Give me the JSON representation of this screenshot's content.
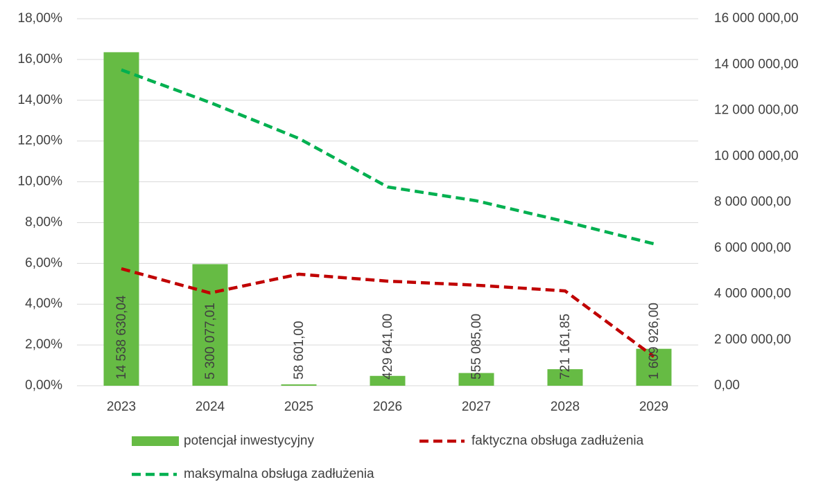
{
  "chart_data": {
    "type": "bar_line",
    "categories": [
      "2023",
      "2024",
      "2025",
      "2026",
      "2027",
      "2028",
      "2029"
    ],
    "series": [
      {
        "name": "potencjał inwestycyjny",
        "type": "bar",
        "axis": "y2",
        "color": "#66bb44",
        "values": [
          14538630.04,
          5300077.01,
          58601,
          429641,
          555085,
          721161.85,
          1609926
        ],
        "value_labels": [
          "14 538 630,04",
          "5 300 077,01",
          "58 601,00",
          "429 641,00",
          "555 085,00",
          "721 161,85",
          "1 609 926,00"
        ]
      },
      {
        "name": "faktyczna obsługa zadłużenia",
        "type": "line",
        "color": "#c00000",
        "values": [
          5.74,
          4.55,
          5.47,
          5.13,
          4.93,
          4.65,
          1.43
        ]
      },
      {
        "name": "maksymalna obsługa zadłużenia",
        "type": "line",
        "color": "#00b050",
        "values": [
          15.49,
          13.89,
          12.13,
          9.75,
          9.07,
          8.05,
          6.96
        ]
      }
    ],
    "ylim": [
      0,
      18
    ],
    "yticks": [
      {
        "value": 0,
        "label": "0,00%"
      },
      {
        "value": 2,
        "label": "2,00%"
      },
      {
        "value": 4,
        "label": "4,00%"
      },
      {
        "value": 6,
        "label": "6,00%"
      },
      {
        "value": 8,
        "label": "8,00%"
      },
      {
        "value": 10,
        "label": "10,00%"
      },
      {
        "value": 12,
        "label": "12,00%"
      },
      {
        "value": 14,
        "label": "14,00%"
      },
      {
        "value": 16,
        "label": "16,00%"
      },
      {
        "value": 18,
        "label": "18,00%"
      }
    ],
    "y2lim": [
      0,
      16000000
    ],
    "y2ticks": [
      {
        "value": 0,
        "label": "0,00"
      },
      {
        "value": 2000000,
        "label": "2 000 000,00"
      },
      {
        "value": 4000000,
        "label": "4 000 000,00"
      },
      {
        "value": 6000000,
        "label": "6 000 000,00"
      },
      {
        "value": 8000000,
        "label": "8 000 000,00"
      },
      {
        "value": 10000000,
        "label": "10 000 000,00"
      },
      {
        "value": 12000000,
        "label": "12 000 000,00"
      },
      {
        "value": 14000000,
        "label": "14 000 000,00"
      },
      {
        "value": 16000000,
        "label": "16 000 000,00"
      }
    ],
    "grid": true,
    "legend": "bottom"
  }
}
